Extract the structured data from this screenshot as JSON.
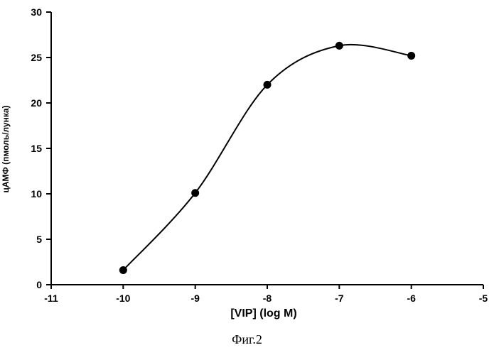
{
  "chart_data": {
    "type": "line",
    "title": "",
    "xlabel": "[VIP]  (log M)",
    "ylabel": "цАМФ (пмоль/лунка)",
    "xlim": [
      -11,
      -5
    ],
    "ylim": [
      0,
      30
    ],
    "x_ticks": [
      "-11",
      "-10",
      "-9",
      "-8",
      "-7",
      "-6",
      "-5"
    ],
    "y_ticks": [
      "0",
      "5",
      "10",
      "15",
      "20",
      "25",
      "30"
    ],
    "grid": false,
    "legend": "none",
    "series": [
      {
        "x": [
          -10,
          -9,
          -8,
          -7,
          -6
        ],
        "y": [
          1.6,
          10.1,
          22.0,
          26.3,
          25.2
        ],
        "marker": "filled-circle",
        "color": "#000000"
      }
    ]
  },
  "caption": "Фиг.2"
}
